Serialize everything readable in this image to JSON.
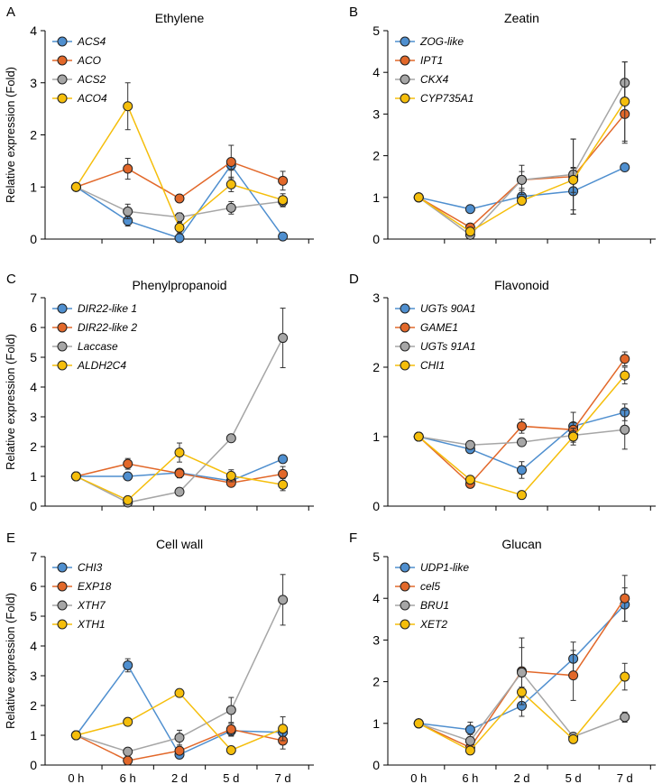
{
  "y_axis_label": "Relative expression (Fold)",
  "colors": {
    "blue": "#4f8fcf",
    "orange": "#e2682a",
    "gray": "#a6a6a6",
    "yellow": "#f5be0b"
  },
  "chart_data": [
    {
      "letter": "A",
      "type": "line",
      "title": "Ethylene",
      "categories": [
        "0 h",
        "6 h",
        "2 d",
        "5 d",
        "7 d"
      ],
      "ylim": [
        0,
        4
      ],
      "yticks": [
        0,
        1,
        2,
        3,
        4
      ],
      "show_xticklabels": false,
      "series": [
        {
          "name": "ACS4",
          "color": "#4f8fcf",
          "values": [
            1.0,
            0.35,
            0.02,
            1.42,
            0.05
          ],
          "errors": [
            0,
            0.1,
            0.02,
            0.1,
            0.02
          ]
        },
        {
          "name": "ACO",
          "color": "#e2682a",
          "values": [
            1.0,
            1.35,
            0.78,
            1.48,
            1.12
          ],
          "errors": [
            0,
            0.2,
            0.06,
            0.32,
            0.18
          ]
        },
        {
          "name": "ACS2",
          "color": "#a6a6a6",
          "values": [
            1.0,
            0.53,
            0.42,
            0.6,
            0.72
          ],
          "errors": [
            0,
            0.14,
            0.08,
            0.12,
            0.1
          ]
        },
        {
          "name": "ACO4",
          "color": "#f5be0b",
          "values": [
            1.0,
            2.55,
            0.22,
            1.05,
            0.75
          ],
          "errors": [
            0,
            0.45,
            0.1,
            0.14,
            0.12
          ]
        }
      ]
    },
    {
      "letter": "B",
      "type": "line",
      "title": "Zeatin",
      "categories": [
        "0 h",
        "6 h",
        "2 d",
        "5 d",
        "7 d"
      ],
      "ylim": [
        0,
        5
      ],
      "yticks": [
        0,
        1,
        2,
        3,
        4,
        5
      ],
      "show_xticklabels": false,
      "series": [
        {
          "name": "ZOG-like",
          "color": "#4f8fcf",
          "values": [
            1.0,
            0.72,
            1.02,
            1.15,
            1.72
          ],
          "errors": [
            0,
            0.06,
            0.15,
            0.55,
            0.08
          ]
        },
        {
          "name": "IPT1",
          "color": "#e2682a",
          "values": [
            1.0,
            0.28,
            1.42,
            1.5,
            3.0
          ],
          "errors": [
            0,
            0.08,
            0.35,
            0.9,
            0.7
          ]
        },
        {
          "name": "CKX4",
          "color": "#a6a6a6",
          "values": [
            1.0,
            0.1,
            1.42,
            1.55,
            3.75
          ],
          "errors": [
            0,
            0.05,
            0.2,
            0.85,
            0.5
          ]
        },
        {
          "name": "CYP735A1",
          "color": "#f5be0b",
          "values": [
            1.0,
            0.18,
            0.92,
            1.42,
            3.3
          ],
          "errors": [
            0,
            0.06,
            0.1,
            0.3,
            0.95
          ]
        }
      ]
    },
    {
      "letter": "C",
      "type": "line",
      "title": "Phenylpropanoid",
      "categories": [
        "0 h",
        "6 h",
        "2 d",
        "5 d",
        "7 d"
      ],
      "ylim": [
        0,
        7
      ],
      "yticks": [
        0,
        1,
        2,
        3,
        4,
        5,
        6,
        7
      ],
      "show_xticklabels": false,
      "series": [
        {
          "name": "DIR22-like 1",
          "color": "#4f8fcf",
          "values": [
            1.0,
            1.0,
            1.12,
            0.85,
            1.58
          ],
          "errors": [
            0,
            0.1,
            0.1,
            0.12,
            0.1
          ]
        },
        {
          "name": "DIR22-like 2",
          "color": "#e2682a",
          "values": [
            1.0,
            1.42,
            1.1,
            0.78,
            1.08
          ],
          "errors": [
            0,
            0.18,
            0.15,
            0.1,
            0.25
          ]
        },
        {
          "name": "Laccase",
          "color": "#a6a6a6",
          "values": [
            1.0,
            0.12,
            0.48,
            2.28,
            5.65
          ],
          "errors": [
            0,
            0.05,
            0.08,
            0.0,
            1.0
          ]
        },
        {
          "name": "ALDH2C4",
          "color": "#f5be0b",
          "values": [
            1.0,
            0.2,
            1.8,
            1.02,
            0.72
          ],
          "errors": [
            0,
            0.05,
            0.32,
            0.2,
            0.2
          ]
        }
      ]
    },
    {
      "letter": "D",
      "type": "line",
      "title": "Flavonoid",
      "categories": [
        "0 h",
        "6 h",
        "2 d",
        "5 d",
        "7 d"
      ],
      "ylim": [
        0,
        3
      ],
      "yticks": [
        0,
        1,
        2,
        3
      ],
      "show_xticklabels": false,
      "series": [
        {
          "name": "UGTs 90A1",
          "color": "#4f8fcf",
          "values": [
            1.0,
            0.82,
            0.52,
            1.15,
            1.35
          ],
          "errors": [
            0,
            0.05,
            0.12,
            0.2,
            0.12
          ]
        },
        {
          "name": "GAME1",
          "color": "#e2682a",
          "values": [
            1.0,
            0.32,
            1.15,
            1.1,
            2.12
          ],
          "errors": [
            0,
            0.03,
            0.1,
            0.1,
            0.1
          ]
        },
        {
          "name": "UGTs 91A1",
          "color": "#a6a6a6",
          "values": [
            1.0,
            0.88,
            0.92,
            1.02,
            1.1
          ],
          "errors": [
            0,
            0.04,
            0.05,
            0.1,
            0.28
          ]
        },
        {
          "name": "CHI1",
          "color": "#f5be0b",
          "values": [
            1.0,
            0.38,
            0.16,
            1.0,
            1.88
          ],
          "errors": [
            0,
            0.03,
            0.03,
            0.12,
            0.12
          ]
        }
      ]
    },
    {
      "letter": "E",
      "type": "line",
      "title": "Cell wall",
      "categories": [
        "0 h",
        "6 h",
        "2 d",
        "5 d",
        "7 d"
      ],
      "ylim": [
        0,
        7
      ],
      "yticks": [
        0,
        1,
        2,
        3,
        4,
        5,
        6,
        7
      ],
      "show_xticklabels": true,
      "series": [
        {
          "name": "CHI3",
          "color": "#4f8fcf",
          "values": [
            1.0,
            3.35,
            0.35,
            1.15,
            1.1
          ],
          "errors": [
            0,
            0.22,
            0.08,
            0.18,
            0.25
          ]
        },
        {
          "name": "EXP18",
          "color": "#e2682a",
          "values": [
            1.0,
            0.15,
            0.48,
            1.2,
            0.82
          ],
          "errors": [
            0,
            0.04,
            0.12,
            0.2,
            0.28
          ]
        },
        {
          "name": "XTH7",
          "color": "#a6a6a6",
          "values": [
            1.0,
            0.45,
            0.92,
            1.85,
            5.55
          ],
          "errors": [
            0,
            0.06,
            0.25,
            0.42,
            0.85
          ]
        },
        {
          "name": "XTH1",
          "color": "#f5be0b",
          "values": [
            1.0,
            1.45,
            2.42,
            0.5,
            1.22
          ],
          "errors": [
            0,
            0.05,
            0.05,
            0.12,
            0.4
          ]
        }
      ]
    },
    {
      "letter": "F",
      "type": "line",
      "title": "Glucan",
      "categories": [
        "0 h",
        "6 h",
        "2 d",
        "5 d",
        "7 d"
      ],
      "ylim": [
        0,
        5
      ],
      "yticks": [
        0,
        1,
        2,
        3,
        4,
        5
      ],
      "show_xticklabels": true,
      "series": [
        {
          "name": "UDP1-like",
          "color": "#4f8fcf",
          "values": [
            1.0,
            0.85,
            1.42,
            2.55,
            3.85
          ],
          "errors": [
            0,
            0.18,
            0.25,
            0.4,
            0.4
          ]
        },
        {
          "name": "cel5",
          "color": "#e2682a",
          "values": [
            1.0,
            0.42,
            2.25,
            2.15,
            4.0
          ],
          "errors": [
            0,
            0.12,
            0.8,
            0.6,
            0.55
          ]
        },
        {
          "name": "BRU1",
          "color": "#a6a6a6",
          "values": [
            1.0,
            0.58,
            2.22,
            0.68,
            1.15
          ],
          "errors": [
            0,
            0.15,
            0.6,
            0.08,
            0.12
          ]
        },
        {
          "name": "XET2",
          "color": "#f5be0b",
          "values": [
            1.0,
            0.35,
            1.75,
            0.62,
            2.12
          ],
          "errors": [
            0,
            0.06,
            0.12,
            0.05,
            0.32
          ]
        }
      ]
    }
  ]
}
